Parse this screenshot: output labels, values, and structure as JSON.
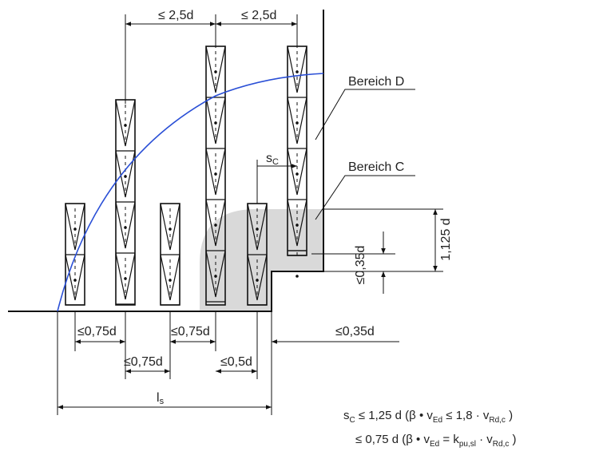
{
  "labels": {
    "bereich_d": "Bereich D",
    "bereich_c": "Bereich C",
    "sc": "s",
    "sc_sub": "C",
    "top_dim_1": "≤ 2,5d",
    "top_dim_2": "≤ 2,5d",
    "vert_1125": "1,125 d",
    "vert_035": "≤0,35d",
    "bottom_075_a": "≤0,75d",
    "bottom_075_b": "≤0,75d",
    "bottom_075_c": "≤0,75d",
    "bottom_05": "≤0,5d",
    "bottom_035": "≤0,35d",
    "ls": "l",
    "ls_sub": "s"
  },
  "formula": {
    "line1_a": "s",
    "line1_a_sub": "C",
    "line1_b": " ≤ 1,25 d (β • v",
    "line1_b_sub": "Ed",
    "line1_c": " ≤ 1,8 · v",
    "line1_c_sub": "Rd,c",
    "line1_d": " )",
    "line2_a": "≤ 0,75 d (β • v",
    "line2_a_sub": "Ed",
    "line2_b": " = k",
    "line2_b_sub": "pu,sl",
    "line2_c": " · v",
    "line2_c_sub": "Rd,c",
    "line2_d": " )"
  },
  "colors": {
    "curve": "#2a4fd6",
    "shade": "#d9d9d9",
    "line": "#111111"
  }
}
